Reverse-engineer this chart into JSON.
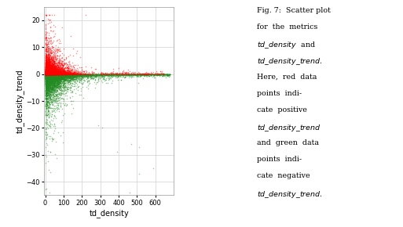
{
  "xlabel": "td_density",
  "ylabel": "td_density_trend",
  "xlim": [
    -5,
    700
  ],
  "ylim": [
    -45,
    25
  ],
  "xticks": [
    0,
    100,
    200,
    300,
    400,
    500,
    600
  ],
  "yticks": [
    -40,
    -30,
    -20,
    -10,
    0,
    10,
    20
  ],
  "red_color": "#ff0000",
  "green_color": "#228b22",
  "point_size": 1.2,
  "alpha": 0.45,
  "seed": 42,
  "background": "#ffffff",
  "grid_color": "#d0d0d0",
  "grid_linewidth": 0.5,
  "caption_lines": [
    "Fig. 7:  Scatter plot",
    "for  the  metrics",
    "ITALIC_td_density  and",
    "ITALIC_td_density_trend.",
    "Here,  red  data",
    "points  indi-",
    "cate  positive",
    "ITALIC_td_density_trend",
    "and  green  data",
    "points  indi-",
    "cate  negative",
    "ITALIC_td_density_trend."
  ]
}
